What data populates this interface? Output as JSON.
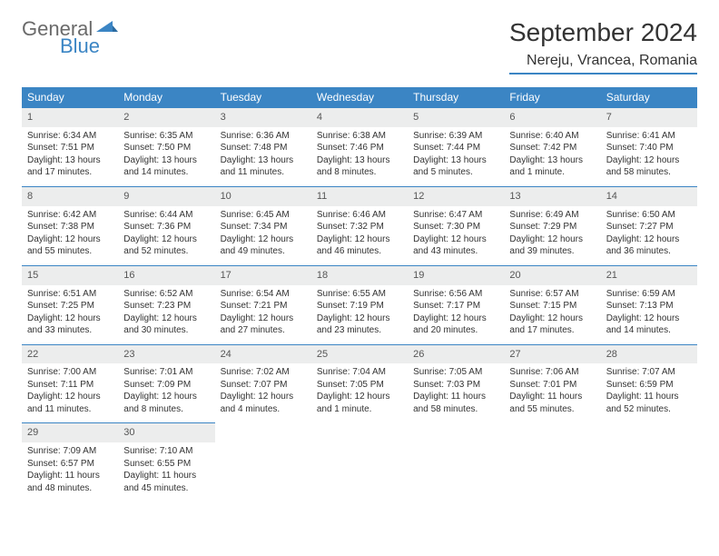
{
  "logo": {
    "top": "General",
    "bottom": "Blue"
  },
  "title": "September 2024",
  "location": "Nereju, Vrancea, Romania",
  "colors": {
    "accent": "#3b85c4",
    "header_text": "#ffffff",
    "daynum_bg": "#eceded",
    "text": "#333333",
    "logo_gray": "#6a6a6a"
  },
  "weekdays": [
    "Sunday",
    "Monday",
    "Tuesday",
    "Wednesday",
    "Thursday",
    "Friday",
    "Saturday"
  ],
  "weeks": [
    [
      {
        "n": "1",
        "sr": "Sunrise: 6:34 AM",
        "ss": "Sunset: 7:51 PM",
        "dl": "Daylight: 13 hours and 17 minutes."
      },
      {
        "n": "2",
        "sr": "Sunrise: 6:35 AM",
        "ss": "Sunset: 7:50 PM",
        "dl": "Daylight: 13 hours and 14 minutes."
      },
      {
        "n": "3",
        "sr": "Sunrise: 6:36 AM",
        "ss": "Sunset: 7:48 PM",
        "dl": "Daylight: 13 hours and 11 minutes."
      },
      {
        "n": "4",
        "sr": "Sunrise: 6:38 AM",
        "ss": "Sunset: 7:46 PM",
        "dl": "Daylight: 13 hours and 8 minutes."
      },
      {
        "n": "5",
        "sr": "Sunrise: 6:39 AM",
        "ss": "Sunset: 7:44 PM",
        "dl": "Daylight: 13 hours and 5 minutes."
      },
      {
        "n": "6",
        "sr": "Sunrise: 6:40 AM",
        "ss": "Sunset: 7:42 PM",
        "dl": "Daylight: 13 hours and 1 minute."
      },
      {
        "n": "7",
        "sr": "Sunrise: 6:41 AM",
        "ss": "Sunset: 7:40 PM",
        "dl": "Daylight: 12 hours and 58 minutes."
      }
    ],
    [
      {
        "n": "8",
        "sr": "Sunrise: 6:42 AM",
        "ss": "Sunset: 7:38 PM",
        "dl": "Daylight: 12 hours and 55 minutes."
      },
      {
        "n": "9",
        "sr": "Sunrise: 6:44 AM",
        "ss": "Sunset: 7:36 PM",
        "dl": "Daylight: 12 hours and 52 minutes."
      },
      {
        "n": "10",
        "sr": "Sunrise: 6:45 AM",
        "ss": "Sunset: 7:34 PM",
        "dl": "Daylight: 12 hours and 49 minutes."
      },
      {
        "n": "11",
        "sr": "Sunrise: 6:46 AM",
        "ss": "Sunset: 7:32 PM",
        "dl": "Daylight: 12 hours and 46 minutes."
      },
      {
        "n": "12",
        "sr": "Sunrise: 6:47 AM",
        "ss": "Sunset: 7:30 PM",
        "dl": "Daylight: 12 hours and 43 minutes."
      },
      {
        "n": "13",
        "sr": "Sunrise: 6:49 AM",
        "ss": "Sunset: 7:29 PM",
        "dl": "Daylight: 12 hours and 39 minutes."
      },
      {
        "n": "14",
        "sr": "Sunrise: 6:50 AM",
        "ss": "Sunset: 7:27 PM",
        "dl": "Daylight: 12 hours and 36 minutes."
      }
    ],
    [
      {
        "n": "15",
        "sr": "Sunrise: 6:51 AM",
        "ss": "Sunset: 7:25 PM",
        "dl": "Daylight: 12 hours and 33 minutes."
      },
      {
        "n": "16",
        "sr": "Sunrise: 6:52 AM",
        "ss": "Sunset: 7:23 PM",
        "dl": "Daylight: 12 hours and 30 minutes."
      },
      {
        "n": "17",
        "sr": "Sunrise: 6:54 AM",
        "ss": "Sunset: 7:21 PM",
        "dl": "Daylight: 12 hours and 27 minutes."
      },
      {
        "n": "18",
        "sr": "Sunrise: 6:55 AM",
        "ss": "Sunset: 7:19 PM",
        "dl": "Daylight: 12 hours and 23 minutes."
      },
      {
        "n": "19",
        "sr": "Sunrise: 6:56 AM",
        "ss": "Sunset: 7:17 PM",
        "dl": "Daylight: 12 hours and 20 minutes."
      },
      {
        "n": "20",
        "sr": "Sunrise: 6:57 AM",
        "ss": "Sunset: 7:15 PM",
        "dl": "Daylight: 12 hours and 17 minutes."
      },
      {
        "n": "21",
        "sr": "Sunrise: 6:59 AM",
        "ss": "Sunset: 7:13 PM",
        "dl": "Daylight: 12 hours and 14 minutes."
      }
    ],
    [
      {
        "n": "22",
        "sr": "Sunrise: 7:00 AM",
        "ss": "Sunset: 7:11 PM",
        "dl": "Daylight: 12 hours and 11 minutes."
      },
      {
        "n": "23",
        "sr": "Sunrise: 7:01 AM",
        "ss": "Sunset: 7:09 PM",
        "dl": "Daylight: 12 hours and 8 minutes."
      },
      {
        "n": "24",
        "sr": "Sunrise: 7:02 AM",
        "ss": "Sunset: 7:07 PM",
        "dl": "Daylight: 12 hours and 4 minutes."
      },
      {
        "n": "25",
        "sr": "Sunrise: 7:04 AM",
        "ss": "Sunset: 7:05 PM",
        "dl": "Daylight: 12 hours and 1 minute."
      },
      {
        "n": "26",
        "sr": "Sunrise: 7:05 AM",
        "ss": "Sunset: 7:03 PM",
        "dl": "Daylight: 11 hours and 58 minutes."
      },
      {
        "n": "27",
        "sr": "Sunrise: 7:06 AM",
        "ss": "Sunset: 7:01 PM",
        "dl": "Daylight: 11 hours and 55 minutes."
      },
      {
        "n": "28",
        "sr": "Sunrise: 7:07 AM",
        "ss": "Sunset: 6:59 PM",
        "dl": "Daylight: 11 hours and 52 minutes."
      }
    ],
    [
      {
        "n": "29",
        "sr": "Sunrise: 7:09 AM",
        "ss": "Sunset: 6:57 PM",
        "dl": "Daylight: 11 hours and 48 minutes."
      },
      {
        "n": "30",
        "sr": "Sunrise: 7:10 AM",
        "ss": "Sunset: 6:55 PM",
        "dl": "Daylight: 11 hours and 45 minutes."
      },
      null,
      null,
      null,
      null,
      null
    ]
  ]
}
